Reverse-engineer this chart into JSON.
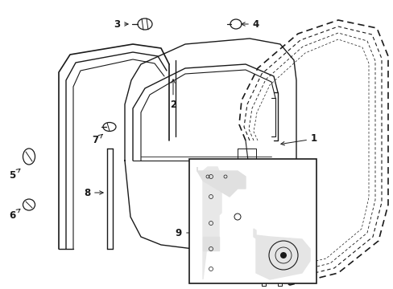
{
  "background_color": "#ffffff",
  "line_color": "#1a1a1a",
  "fig_w": 4.89,
  "fig_h": 3.6,
  "dpi": 100
}
